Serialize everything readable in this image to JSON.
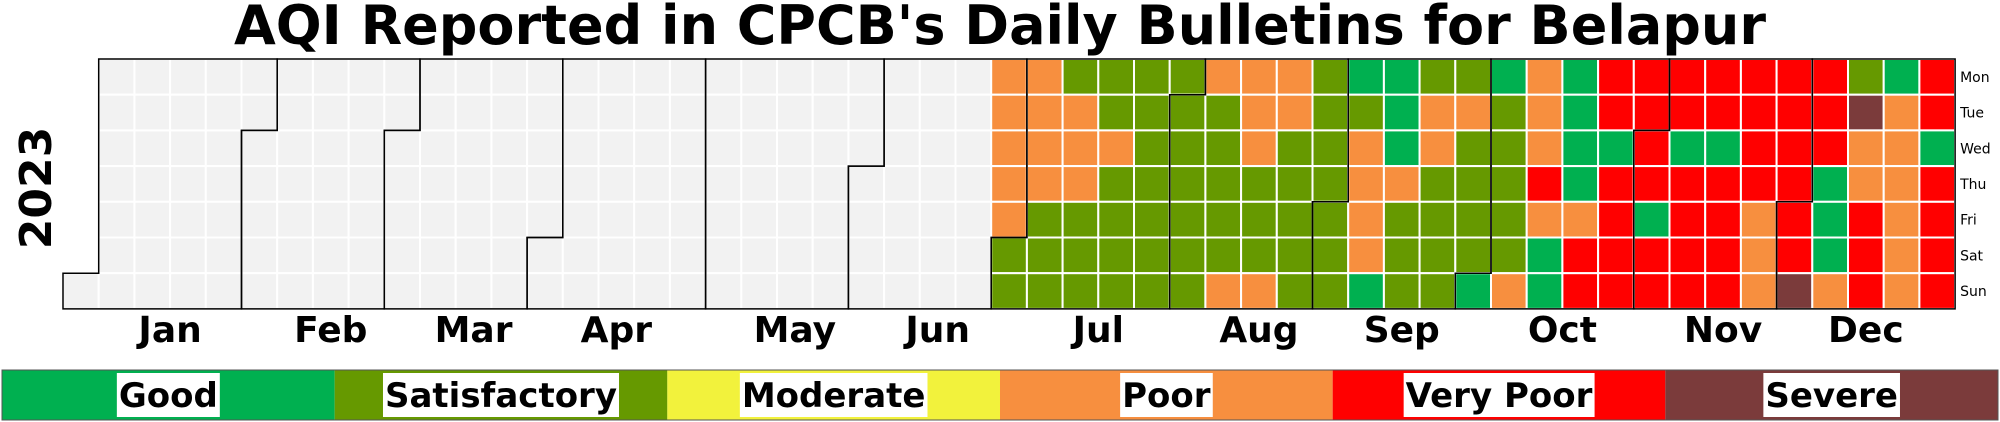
{
  "chart_data": {
    "type": "heatmap",
    "subtype": "calendar",
    "title": "AQI Reported in CPCB's Daily Bulletins for Belapur",
    "year": "2023",
    "start_weekday": "Sun",
    "days_in_year": 365,
    "first_reported_day": "2023-06-26",
    "weekday_labels": [
      "Mon",
      "Tue",
      "Wed",
      "Thu",
      "Fri",
      "Sat",
      "Sun"
    ],
    "month_labels": [
      "Jan",
      "Feb",
      "Mar",
      "Apr",
      "May",
      "Jun",
      "Jul",
      "Aug",
      "Sep",
      "Oct",
      "Nov",
      "Dec"
    ],
    "month_lengths": [
      31,
      28,
      31,
      30,
      31,
      30,
      31,
      31,
      30,
      31,
      30,
      31
    ],
    "no_data_color": "#f2f2f2",
    "categories": [
      {
        "code": "G",
        "label": "Good",
        "color": "#00b050"
      },
      {
        "code": "S",
        "label": "Satisfactory",
        "color": "#669900"
      },
      {
        "code": "M",
        "label": "Moderate",
        "color": "#f2f23c"
      },
      {
        "code": "P",
        "label": "Poor",
        "color": "#f78f3f"
      },
      {
        "code": "V",
        "label": "Very Poor",
        "color": "#ff0000"
      },
      {
        "code": "X",
        "label": "Severe",
        "color": "#7b3b3b"
      }
    ],
    "series": [
      {
        "period": "2023-06-26 to 2023-07-02",
        "days": "PPPPPSS"
      },
      {
        "period": "2023-07-03 to 2023-07-09",
        "days": "PPPPSSS"
      },
      {
        "period": "2023-07-10 to 2023-07-16",
        "days": "SPPPSSS"
      },
      {
        "period": "2023-07-17 to 2023-07-23",
        "days": "SSPSSSS"
      },
      {
        "period": "2023-07-24 to 2023-07-30",
        "days": "SSSSSSS"
      },
      {
        "period": "2023-07-31 to 2023-08-06",
        "days": "SSSSSSS"
      },
      {
        "period": "2023-08-07 to 2023-08-13",
        "days": "PSSSSSP"
      },
      {
        "period": "2023-08-14 to 2023-08-20",
        "days": "PPPSSSP"
      },
      {
        "period": "2023-08-21 to 2023-08-27",
        "days": "PPSSSSS"
      },
      {
        "period": "2023-08-28 to 2023-09-03",
        "days": "SSSSSSS"
      },
      {
        "period": "2023-09-04 to 2023-09-10",
        "days": "GSPPPPG"
      },
      {
        "period": "2023-09-11 to 2023-09-17",
        "days": "GGGPSSS"
      },
      {
        "period": "2023-09-18 to 2023-09-24",
        "days": "SPPSSSS"
      },
      {
        "period": "2023-09-25 to 2023-10-01",
        "days": "SPSSSSG"
      },
      {
        "period": "2023-10-02 to 2023-10-08",
        "days": "GSSSSSP"
      },
      {
        "period": "2023-10-09 to 2023-10-15",
        "days": "PPPVPGG"
      },
      {
        "period": "2023-10-16 to 2023-10-22",
        "days": "GGGGPVV"
      },
      {
        "period": "2023-10-23 to 2023-10-29",
        "days": "VVGVVVV"
      },
      {
        "period": "2023-10-30 to 2023-11-05",
        "days": "VVVVGVV"
      },
      {
        "period": "2023-11-06 to 2023-11-12",
        "days": "VVGVVVV"
      },
      {
        "period": "2023-11-13 to 2023-11-19",
        "days": "VVGVVVV"
      },
      {
        "period": "2023-11-20 to 2023-11-26",
        "days": "VVVVPPP"
      },
      {
        "period": "2023-11-27 to 2023-12-03",
        "days": "VVVVVVX"
      },
      {
        "period": "2023-12-04 to 2023-12-10",
        "days": "VVVGGGP"
      },
      {
        "period": "2023-12-11 to 2023-12-17",
        "days": "SXPPVVV"
      },
      {
        "period": "2023-12-18 to 2023-12-24",
        "days": "GPPPPPP"
      },
      {
        "period": "2023-12-25 to 2023-12-31",
        "days": "VVGVVVV"
      },
      {
        "period": "2024-01-01",
        "days": "V"
      }
    ],
    "grid": true,
    "legend_position": "bottom",
    "xlabel": "",
    "ylabel": ""
  }
}
